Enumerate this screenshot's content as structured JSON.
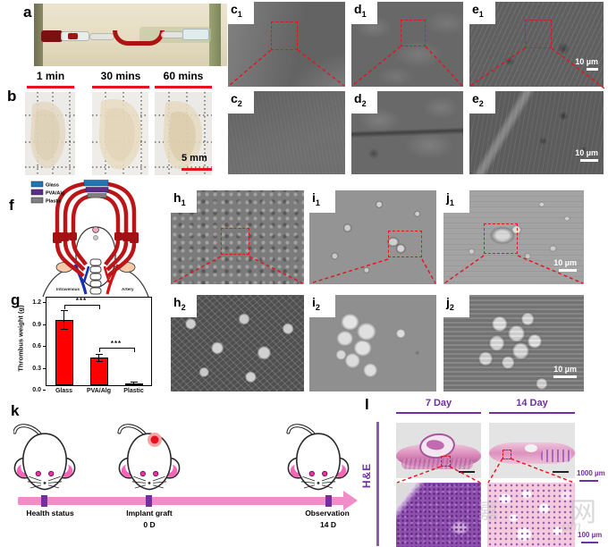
{
  "panel_labels": {
    "a": "a",
    "b": "b",
    "f": "f",
    "g": "g",
    "k": "k",
    "l": "l"
  },
  "panel_b": {
    "timepoints": [
      "1 min",
      "30 mins",
      "60 mins"
    ],
    "scale_bar": "5 mm"
  },
  "sem_panels": {
    "c1": {
      "base": "c",
      "sub": "1"
    },
    "d1": {
      "base": "d",
      "sub": "1"
    },
    "e1": {
      "base": "e",
      "sub": "1",
      "scale": "10 µm"
    },
    "c2": {
      "base": "c",
      "sub": "2"
    },
    "d2": {
      "base": "d",
      "sub": "2"
    },
    "e2": {
      "base": "e",
      "sub": "2",
      "scale": "10 µm"
    },
    "h1": {
      "base": "h",
      "sub": "1"
    },
    "i1": {
      "base": "i",
      "sub": "1"
    },
    "j1": {
      "base": "j",
      "sub": "1",
      "scale": "10 µm"
    },
    "h2": {
      "base": "h",
      "sub": "2"
    },
    "i2": {
      "base": "i",
      "sub": "2"
    },
    "j2": {
      "base": "j",
      "sub": "2",
      "scale": "10 µm"
    }
  },
  "panel_f": {
    "legend": [
      {
        "label": "Glass",
        "color": "#1f76b4"
      },
      {
        "label": "PVA/Alg",
        "color": "#5c2d87"
      },
      {
        "label": "Plastic",
        "color": "#7f7f7f"
      }
    ],
    "vessel_labels": {
      "left": "Intravenous",
      "right": "Artery"
    }
  },
  "chart_data": {
    "type": "bar",
    "categories": [
      "Glass",
      "PVA/Alg",
      "Plastic"
    ],
    "values": [
      0.9,
      0.38,
      0.03
    ],
    "errors": [
      0.13,
      0.05,
      0.02
    ],
    "title": "",
    "xlabel": "",
    "ylabel": "Thrombus weight (g)",
    "ylim": [
      0,
      1.2
    ],
    "yticks": [
      "0.0",
      "0.3",
      "0.6",
      "0.9",
      "1.2"
    ],
    "bar_color": "#ff0000",
    "grid": false,
    "legend_position": "none",
    "significance": [
      {
        "between": [
          0,
          1
        ],
        "y": 1.1,
        "label": "***"
      },
      {
        "between": [
          1,
          2
        ],
        "y": 0.52,
        "label": "***"
      }
    ]
  },
  "panel_k": {
    "events": [
      {
        "title": "Health status",
        "day": ""
      },
      {
        "title": "Implant graft",
        "day": "0 D"
      },
      {
        "title": "Observation",
        "day": "14 D"
      }
    ],
    "timeline_color": "#f08cc8",
    "marker_color": "#7030a0"
  },
  "panel_l": {
    "columns": [
      "7 Day",
      "14 Day"
    ],
    "row_label": "H&E",
    "scale_bars": {
      "top": "1000 µm",
      "bottom": "100 µm"
    },
    "accent_color": "#7030a0",
    "watermark": {
      "glyph_left": "嘉",
      "glyph_right": "网",
      "latin": "om"
    }
  }
}
